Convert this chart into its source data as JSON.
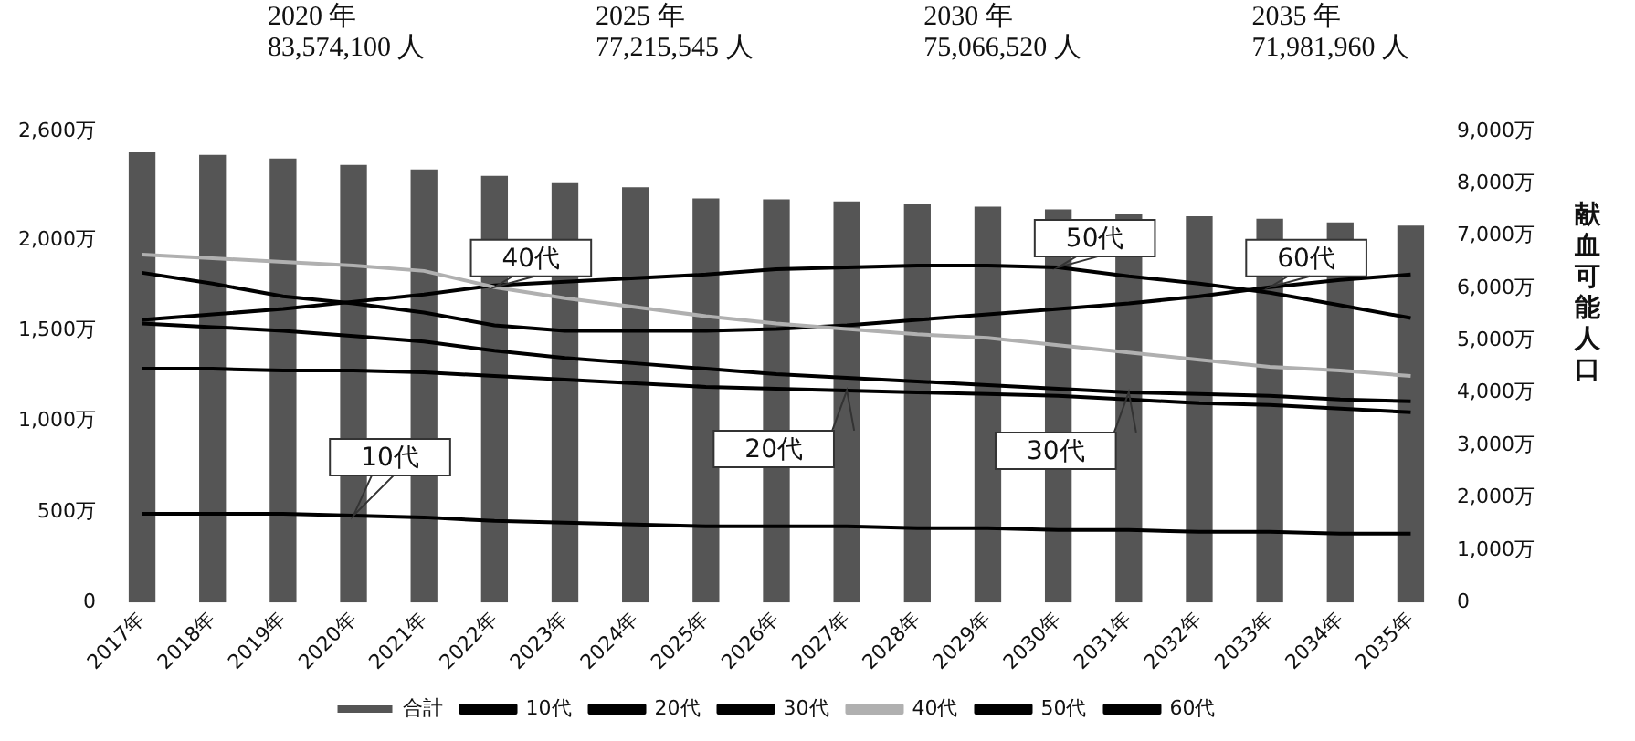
{
  "chart_data": {
    "type": "bar",
    "y2label": "献血可能人口",
    "categories": [
      "2017年",
      "2018年",
      "2019年",
      "2020年",
      "2021年",
      "2022年",
      "2023年",
      "2024年",
      "2025年",
      "2026年",
      "2027年",
      "2028年",
      "2029年",
      "2030年",
      "2031年",
      "2032年",
      "2033年",
      "2034年",
      "2035年"
    ],
    "series": [
      {
        "name": "合計",
        "color": "#555555",
        "axis": "y2",
        "values": [
          8600,
          8550,
          8480,
          8360,
          8270,
          8150,
          8030,
          7930,
          7720,
          7700,
          7660,
          7610,
          7560,
          7510,
          7420,
          7380,
          7330,
          7260,
          7200
        ]
      },
      {
        "name": "10代",
        "type": "line",
        "color": "#000000",
        "values": [
          490,
          490,
          490,
          480,
          470,
          450,
          440,
          430,
          420,
          420,
          420,
          410,
          410,
          400,
          400,
          390,
          390,
          380,
          380
        ]
      },
      {
        "name": "20代",
        "type": "line",
        "color": "#000000",
        "values": [
          1290,
          1290,
          1280,
          1280,
          1270,
          1250,
          1230,
          1210,
          1190,
          1180,
          1170,
          1160,
          1150,
          1140,
          1120,
          1100,
          1090,
          1070,
          1050
        ]
      },
      {
        "name": "30代",
        "type": "line",
        "color": "#000000",
        "values": [
          1540,
          1520,
          1500,
          1470,
          1440,
          1390,
          1350,
          1320,
          1290,
          1260,
          1240,
          1220,
          1200,
          1180,
          1160,
          1150,
          1140,
          1120,
          1110
        ]
      },
      {
        "name": "40代",
        "type": "line",
        "color": "#b0b0b0",
        "values": [
          1920,
          1900,
          1880,
          1860,
          1830,
          1740,
          1680,
          1630,
          1580,
          1540,
          1510,
          1480,
          1460,
          1420,
          1380,
          1340,
          1300,
          1280,
          1250
        ]
      },
      {
        "name": "50代",
        "type": "line",
        "color": "#000000",
        "values": [
          1560,
          1590,
          1620,
          1660,
          1700,
          1750,
          1770,
          1790,
          1810,
          1840,
          1850,
          1860,
          1860,
          1850,
          1800,
          1760,
          1710,
          1640,
          1570
        ]
      },
      {
        "name": "60代",
        "type": "line",
        "color": "#000000",
        "values": [
          1820,
          1760,
          1690,
          1650,
          1600,
          1530,
          1500,
          1500,
          1500,
          1510,
          1530,
          1560,
          1590,
          1620,
          1650,
          1690,
          1740,
          1780,
          1810
        ]
      }
    ],
    "ylim": [
      0,
      2600
    ],
    "yticks": [
      0,
      {
        "value": 500,
        "label": "500万"
      },
      {
        "value": 1000,
        "label": "1,000万"
      },
      {
        "value": 1500,
        "label": "1,500万"
      },
      {
        "value": 2000,
        "label": "2,000万"
      },
      {
        "value": 2600,
        "label": "2,600万"
      }
    ],
    "y2lim": [
      0,
      9000
    ],
    "y2ticks": [
      0,
      {
        "value": 1000,
        "label": "1,000万"
      },
      {
        "value": 2000,
        "label": "2,000万"
      },
      {
        "value": 3000,
        "label": "3,000万"
      },
      {
        "value": 4000,
        "label": "4,000万"
      },
      {
        "value": 5000,
        "label": "5,000万"
      },
      {
        "value": 6000,
        "label": "6,000万"
      },
      {
        "value": 7000,
        "label": "7,000万"
      },
      {
        "value": 8000,
        "label": "8,000万"
      },
      {
        "value": 9000,
        "label": "9,000万"
      }
    ],
    "annotations": [
      "2020 年\n83,574,100 人",
      "2025 年\n77,215,545 人",
      "2030 年\n75,066,520 人",
      "2035 年\n71,981,960 人",
      {
        "text": "10代",
        "x": "2020年",
        "y": 480
      },
      {
        "text": "20代",
        "x": "2027年",
        "y": 1170
      },
      {
        "text": "30代",
        "x": "2031年",
        "y": 1160
      },
      {
        "text": "40代",
        "x": "2022年",
        "y": 1740
      },
      {
        "text": "50代",
        "x": "2030年",
        "y": 1850
      },
      {
        "text": "60代",
        "x": "2033年",
        "y": 1740
      }
    ],
    "legend": "bottom",
    "grid": false,
    "line_style": "solid"
  }
}
